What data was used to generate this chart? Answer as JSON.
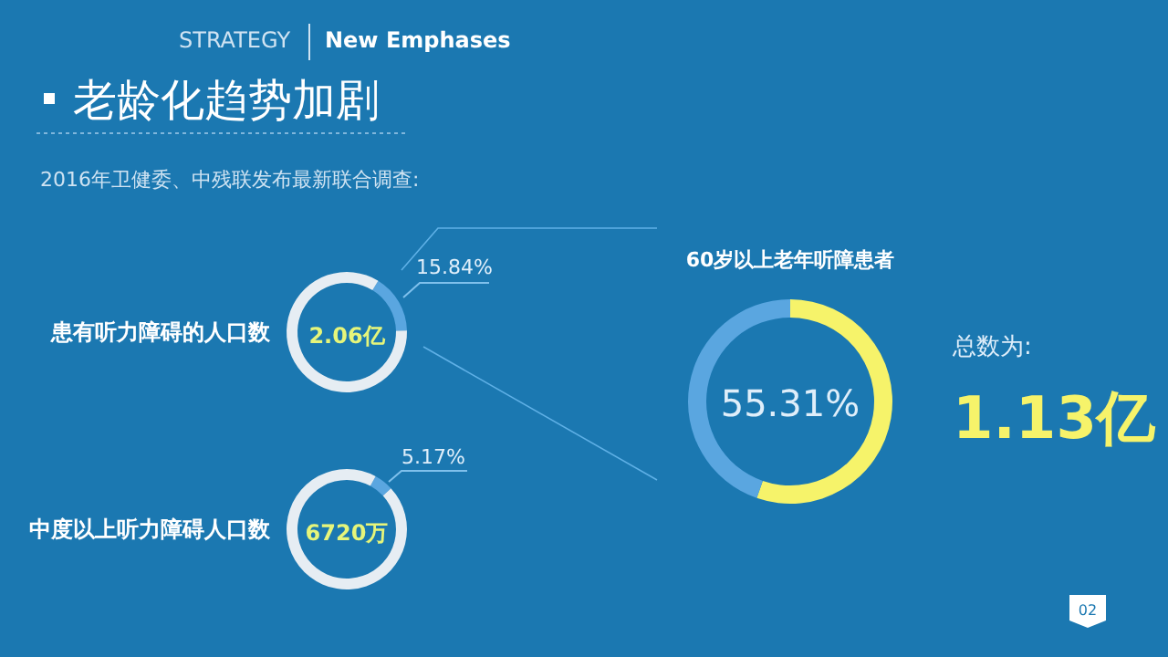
{
  "chart_data": [
    {
      "type": "other",
      "title": "老龄化趋势加剧",
      "subtitle": "2016年卫健委、中残联发布最新联合调查:",
      "annotations": [
        "STRATEGY",
        "New Emphases",
        "02"
      ]
    },
    {
      "type": "donut",
      "title": "患有听力障碍的人口数",
      "categories": [
        null,
        null
      ],
      "values": [
        15.84,
        84.16
      ],
      "colors": [
        "#5aa6e0",
        "#e6edf3"
      ],
      "value_labels": [
        "15.84%",
        null
      ],
      "annotations": [
        "2.06亿"
      ]
    },
    {
      "type": "donut",
      "title": "中度以上听力障碍人口数",
      "categories": [
        null,
        null
      ],
      "values": [
        5.17,
        94.83
      ],
      "colors": [
        "#5aa6e0",
        "#e6edf3"
      ],
      "value_labels": [
        "5.17%",
        null
      ],
      "annotations": [
        "6720万"
      ]
    },
    {
      "type": "donut",
      "title": "60岁以上老年听障患者",
      "categories": [
        null,
        null
      ],
      "values": [
        55.31,
        44.69
      ],
      "colors": [
        "#f6f36a",
        "#5aa6e0"
      ],
      "value_labels": [
        "55.31%",
        null
      ],
      "annotations": [
        "总数为:",
        "1.13亿"
      ]
    }
  ]
}
